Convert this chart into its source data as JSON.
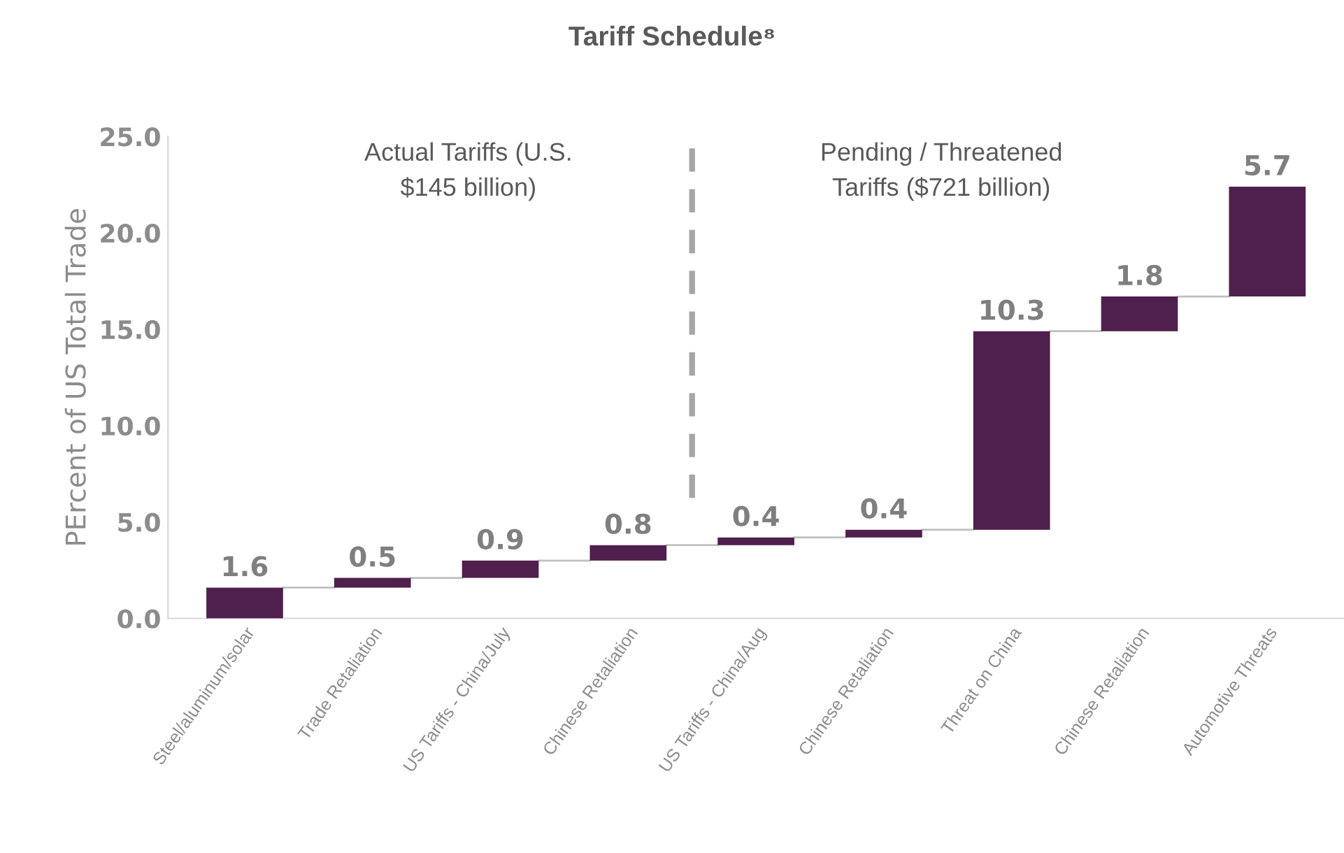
{
  "chart_data": {
    "type": "bar",
    "title": "Tariff Schedule⁸",
    "ylabel": "PErcent of US Total Trade",
    "categories": [
      "Steel/aluminum/solar",
      "Trade Retaliation",
      "US Tariffs - China/July",
      "Chinese Retaliation",
      "US Tariffs - China/Aug",
      "Chinese Retaliation",
      "Threat on China",
      "Chinese Retaliation",
      "Automotive Threats"
    ],
    "values": [
      1.6,
      0.5,
      0.9,
      0.8,
      0.4,
      0.4,
      10.3,
      1.8,
      5.7
    ],
    "base": [
      0,
      1.6,
      2.1,
      3.0,
      3.8,
      4.2,
      4.6,
      14.9,
      16.7
    ],
    "color": "#4f1f4d",
    "data_labels": true,
    "ylim": [
      0,
      25
    ],
    "yticks": [
      {
        "value": 0,
        "label": "0.0"
      },
      {
        "value": 5,
        "label": "5.0"
      },
      {
        "value": 10,
        "label": "10.0"
      },
      {
        "value": 15,
        "label": "15.0"
      },
      {
        "value": 20,
        "label": "20.0"
      },
      {
        "value": 25,
        "label": "25.0"
      }
    ],
    "grid": false,
    "annotations": [
      "Actual Tariffs (U.S.\n$145 billion)",
      "Pending / Threatened\nTariffs ($721 billion)"
    ]
  }
}
